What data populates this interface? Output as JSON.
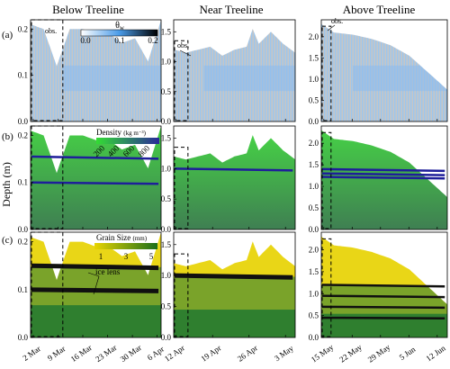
{
  "columns": [
    "Below Treeline",
    "Near Treeline",
    "Above Treeline"
  ],
  "row_labels": [
    "(a)",
    "(b)",
    "(c)"
  ],
  "y_axis_label": "Depth (m)",
  "legends": {
    "theta": {
      "title": "θ",
      "subscript": "w",
      "ticks": [
        "0.0",
        "0.1",
        "0.2"
      ],
      "colors": [
        "#ffffff",
        "#4a9be8",
        "#000000"
      ]
    },
    "density": {
      "title": "Density",
      "unit": "(kg m⁻³)",
      "ticks": [
        "200",
        "400",
        "600",
        "800"
      ],
      "colors": [
        "#33dd33",
        "#2a2a9a"
      ]
    },
    "grain": {
      "title": "Grain Size",
      "unit": "(mm)",
      "ticks": [
        "1",
        "3",
        "5"
      ],
      "colors": [
        "#e8d400",
        "#1a6e1a"
      ]
    }
  },
  "annotations": {
    "obs": "obs.",
    "ice_lens": "ice lens"
  },
  "colors": {
    "snow_gray": "#c6c6c6",
    "wet_blue": "#8cbcee",
    "density_green": "#43c843",
    "grain_yellow": "#e9d617",
    "grain_green": "#2f7f2f",
    "ice_black": "#101010"
  },
  "chart_data": [
    {
      "type": "area",
      "panel": "a-below",
      "ylim": [
        0,
        0.22
      ],
      "yticks": [
        "0.0",
        "0.1",
        "0.2"
      ],
      "x_ticks": [
        "2 Mar",
        "9 Mar",
        "16 Mar",
        "23 Mar",
        "30 Mar",
        "6 Apr"
      ],
      "snow_depth_x": [
        0,
        0.1,
        0.2,
        0.3,
        0.4,
        0.5,
        0.6,
        0.7,
        0.8,
        0.9,
        1.0
      ],
      "snow_depth": [
        0.21,
        0.2,
        0.12,
        0.2,
        0.2,
        0.19,
        0.19,
        0.17,
        0.18,
        0.13,
        0.22
      ]
    },
    {
      "type": "area",
      "panel": "a-near",
      "ylim": [
        0,
        1.7
      ],
      "yticks": [
        "0.0",
        "0.5",
        "1.0",
        "1.5"
      ],
      "x_ticks": [
        "12 Apr",
        "19 Apr",
        "26 Apr",
        "3 May"
      ],
      "snow_depth_x": [
        0,
        0.1,
        0.2,
        0.3,
        0.4,
        0.5,
        0.6,
        0.65,
        0.7,
        0.8,
        0.9,
        1.0
      ],
      "snow_depth": [
        1.2,
        1.15,
        1.2,
        1.25,
        1.1,
        1.2,
        1.25,
        1.55,
        1.3,
        1.5,
        1.3,
        1.15
      ]
    },
    {
      "type": "area",
      "panel": "a-above",
      "ylim": [
        0,
        2.4
      ],
      "yticks": [
        "0.0",
        "0.5",
        "1.0",
        "1.5",
        "2.0"
      ],
      "x_ticks": [
        "15 May",
        "22 May",
        "29 May",
        "5 Jun",
        "12 Jun"
      ],
      "snow_depth_x": [
        0,
        0.1,
        0.25,
        0.4,
        0.55,
        0.7,
        0.85,
        1.0
      ],
      "snow_depth": [
        2.3,
        2.1,
        2.05,
        1.95,
        1.8,
        1.55,
        1.15,
        0.75
      ]
    },
    {
      "type": "area",
      "panel": "b-below",
      "ylim": [
        0,
        0.22
      ],
      "yticks": [
        "0.0",
        "0.1",
        "0.2"
      ],
      "x_ticks": [
        "2 Mar",
        "9 Mar",
        "16 Mar",
        "23 Mar",
        "30 Mar",
        "6 Apr"
      ],
      "snow_depth_x": [
        0,
        0.1,
        0.2,
        0.3,
        0.4,
        0.5,
        0.6,
        0.7,
        0.8,
        0.9,
        1.0
      ],
      "snow_depth": [
        0.21,
        0.2,
        0.12,
        0.2,
        0.2,
        0.19,
        0.19,
        0.17,
        0.18,
        0.13,
        0.22
      ],
      "ice_lens_depths": [
        0.155,
        0.1
      ]
    },
    {
      "type": "area",
      "panel": "b-near",
      "ylim": [
        0,
        1.7
      ],
      "yticks": [
        "0.0",
        "0.5",
        "1.0",
        "1.5"
      ],
      "x_ticks": [
        "12 Apr",
        "19 Apr",
        "26 Apr",
        "3 May"
      ],
      "snow_depth_x": [
        0,
        0.1,
        0.2,
        0.3,
        0.4,
        0.5,
        0.6,
        0.65,
        0.7,
        0.8,
        0.9,
        1.0
      ],
      "snow_depth": [
        1.2,
        1.15,
        1.2,
        1.25,
        1.1,
        1.2,
        1.25,
        1.55,
        1.3,
        1.5,
        1.3,
        1.15
      ],
      "ice_lens_depths": [
        1.0
      ]
    },
    {
      "type": "area",
      "panel": "b-above",
      "ylim": [
        0,
        2.4
      ],
      "yticks": [
        "0.0",
        "0.5",
        "1.0",
        "1.5",
        "2.0"
      ],
      "x_ticks": [
        "15 May",
        "22 May",
        "29 May",
        "5 Jun",
        "12 Jun"
      ],
      "snow_depth_x": [
        0,
        0.1,
        0.25,
        0.4,
        0.55,
        0.7,
        0.85,
        1.0
      ],
      "snow_depth": [
        2.3,
        2.1,
        2.05,
        1.95,
        1.8,
        1.55,
        1.15,
        0.75
      ],
      "ice_lens_depths": [
        1.4,
        1.3,
        1.22
      ]
    },
    {
      "type": "area",
      "panel": "c-below",
      "ylim": [
        0,
        0.22
      ],
      "yticks": [
        "0.0",
        "0.1",
        "0.2"
      ],
      "x_ticks": [
        "2 Mar",
        "9 Mar",
        "16 Mar",
        "23 Mar",
        "30 Mar",
        "6 Apr"
      ],
      "snow_depth_x": [
        0,
        0.1,
        0.2,
        0.3,
        0.4,
        0.5,
        0.6,
        0.7,
        0.8,
        0.9,
        1.0
      ],
      "snow_depth": [
        0.21,
        0.2,
        0.12,
        0.2,
        0.2,
        0.19,
        0.19,
        0.17,
        0.18,
        0.13,
        0.22
      ],
      "ice_lens_depths": [
        0.15,
        0.1
      ]
    },
    {
      "type": "area",
      "panel": "c-near",
      "ylim": [
        0,
        1.7
      ],
      "yticks": [
        "0.0",
        "0.5",
        "1.0",
        "1.5"
      ],
      "x_ticks": [
        "12 Apr",
        "19 Apr",
        "26 Apr",
        "3 May"
      ],
      "snow_depth_x": [
        0,
        0.1,
        0.2,
        0.3,
        0.4,
        0.5,
        0.6,
        0.65,
        0.7,
        0.8,
        0.9,
        1.0
      ],
      "snow_depth": [
        1.2,
        1.15,
        1.2,
        1.25,
        1.1,
        1.2,
        1.25,
        1.55,
        1.3,
        1.5,
        1.3,
        1.15
      ],
      "ice_lens_depths": [
        1.0
      ]
    },
    {
      "type": "area",
      "panel": "c-above",
      "ylim": [
        0,
        2.4
      ],
      "yticks": [
        "0.0",
        "0.5",
        "1.0",
        "1.5",
        "2.0"
      ],
      "x_ticks": [
        "15 May",
        "22 May",
        "29 May",
        "5 Jun",
        "12 Jun"
      ],
      "snow_depth_x": [
        0,
        0.1,
        0.25,
        0.4,
        0.55,
        0.7,
        0.85,
        1.0
      ],
      "snow_depth": [
        2.3,
        2.1,
        2.05,
        1.95,
        1.8,
        1.55,
        1.15,
        0.75
      ],
      "ice_lens_depths": [
        1.2,
        0.95,
        0.7,
        0.45
      ]
    }
  ]
}
